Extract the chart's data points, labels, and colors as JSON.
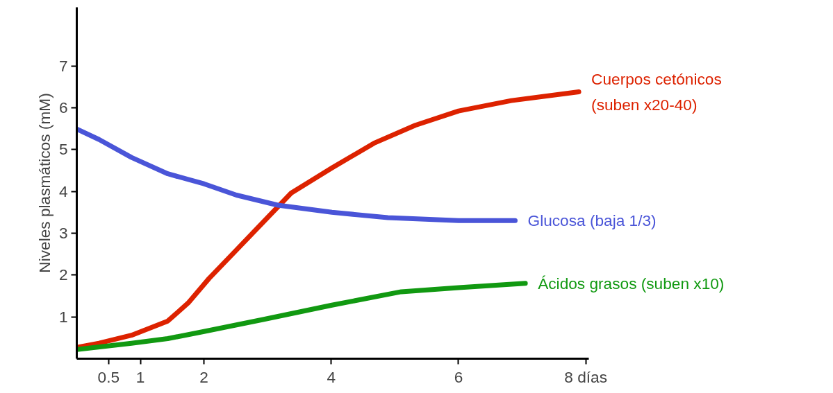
{
  "chart_data": {
    "type": "line",
    "ylabel": "Niveles plasmáticos (mM)",
    "xlim": [
      0,
      8.05
    ],
    "ylim": [
      0,
      8.4
    ],
    "xticks": [
      0.5,
      1,
      2,
      4,
      6,
      {
        "value": 8,
        "label": "8 días"
      }
    ],
    "yticks": [
      1,
      2,
      3,
      4,
      5,
      6,
      7
    ],
    "grid": false,
    "legend": false,
    "marker": "none",
    "line_style": "solid",
    "series": [
      {
        "name": "Cuerpos cetónicos\n(suben x20-40)",
        "color": "#dd2200",
        "x": [
          0,
          0.35,
          0.86,
          1.43,
          1.75,
          2.08,
          2.51,
          2.94,
          3.37,
          4.01,
          4.67,
          5.32,
          6.0,
          6.83,
          7.89
        ],
        "values": [
          0.27,
          0.37,
          0.56,
          0.9,
          1.33,
          1.92,
          2.6,
          3.28,
          3.96,
          4.56,
          5.15,
          5.58,
          5.92,
          6.17,
          6.38
        ]
      },
      {
        "name": "Glucosa (baja 1/3)",
        "color": "#4a55d8",
        "x": [
          0,
          0.35,
          0.86,
          1.43,
          2,
          2.51,
          3.16,
          4.01,
          4.89,
          6,
          6.89
        ],
        "values": [
          5.49,
          5.24,
          4.81,
          4.42,
          4.18,
          3.91,
          3.67,
          3.5,
          3.37,
          3.3,
          3.3
        ]
      },
      {
        "name": "Ácidos grasos (suben x10)",
        "color": "#119911",
        "x": [
          0,
          0.86,
          1.43,
          2,
          2.94,
          4.01,
          5.1,
          6,
          7.05
        ],
        "values": [
          0.22,
          0.37,
          0.48,
          0.65,
          0.94,
          1.28,
          1.6,
          1.7,
          1.8
        ]
      }
    ]
  }
}
